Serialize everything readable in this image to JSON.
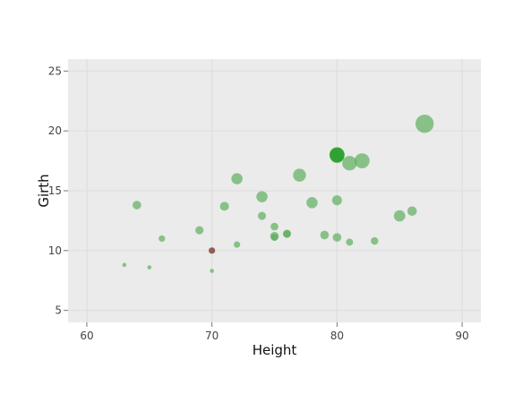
{
  "chart_data": {
    "type": "scatter",
    "xlabel": "Height",
    "ylabel": "Girth",
    "xlim": [
      58.5,
      91.5
    ],
    "ylim": [
      4,
      26
    ],
    "xticks": [
      60,
      70,
      80,
      90
    ],
    "yticks": [
      5,
      10,
      15,
      20,
      25
    ],
    "grid": true,
    "colors": {
      "panel": "#ebebeb",
      "grid": "#dcdcdc",
      "points": "#59ac59",
      "highlight_large": "#2ca02c",
      "highlight_small": "#8c564b"
    },
    "points": [
      {
        "x": 63,
        "y": 8.8,
        "size": 0.06
      },
      {
        "x": 65,
        "y": 8.6,
        "size": 0.08
      },
      {
        "x": 70,
        "y": 8.3,
        "size": 0.08
      },
      {
        "x": 70,
        "y": 10.0,
        "size": 0.3,
        "highlight": "small"
      },
      {
        "x": 72,
        "y": 10.5,
        "size": 0.3
      },
      {
        "x": 66,
        "y": 11.0,
        "size": 0.3
      },
      {
        "x": 69,
        "y": 11.7,
        "size": 0.38
      },
      {
        "x": 64,
        "y": 13.8,
        "size": 0.4
      },
      {
        "x": 71,
        "y": 13.7,
        "size": 0.42
      },
      {
        "x": 72,
        "y": 16.0,
        "size": 0.52
      },
      {
        "x": 74,
        "y": 14.5,
        "size": 0.52
      },
      {
        "x": 74,
        "y": 12.9,
        "size": 0.38
      },
      {
        "x": 75,
        "y": 12.0,
        "size": 0.36
      },
      {
        "x": 75,
        "y": 11.2,
        "size": 0.4
      },
      {
        "x": 75,
        "y": 11.1,
        "size": 0.33
      },
      {
        "x": 76,
        "y": 11.4,
        "size": 0.38
      },
      {
        "x": 76,
        "y": 11.4,
        "size": 0.34
      },
      {
        "x": 77,
        "y": 16.3,
        "size": 0.6
      },
      {
        "x": 78,
        "y": 14.0,
        "size": 0.52
      },
      {
        "x": 79,
        "y": 11.3,
        "size": 0.4
      },
      {
        "x": 80,
        "y": 11.1,
        "size": 0.4
      },
      {
        "x": 80,
        "y": 14.2,
        "size": 0.46
      },
      {
        "x": 80,
        "y": 17.9,
        "size": 0.66
      },
      {
        "x": 80,
        "y": 18.0,
        "size": 0.7,
        "highlight": "large"
      },
      {
        "x": 81,
        "y": 10.7,
        "size": 0.33
      },
      {
        "x": 81,
        "y": 17.3,
        "size": 0.68
      },
      {
        "x": 82,
        "y": 17.5,
        "size": 0.7
      },
      {
        "x": 83,
        "y": 10.8,
        "size": 0.35
      },
      {
        "x": 85,
        "y": 12.9,
        "size": 0.53
      },
      {
        "x": 86,
        "y": 13.3,
        "size": 0.44
      },
      {
        "x": 87,
        "y": 20.6,
        "size": 0.85
      }
    ]
  }
}
